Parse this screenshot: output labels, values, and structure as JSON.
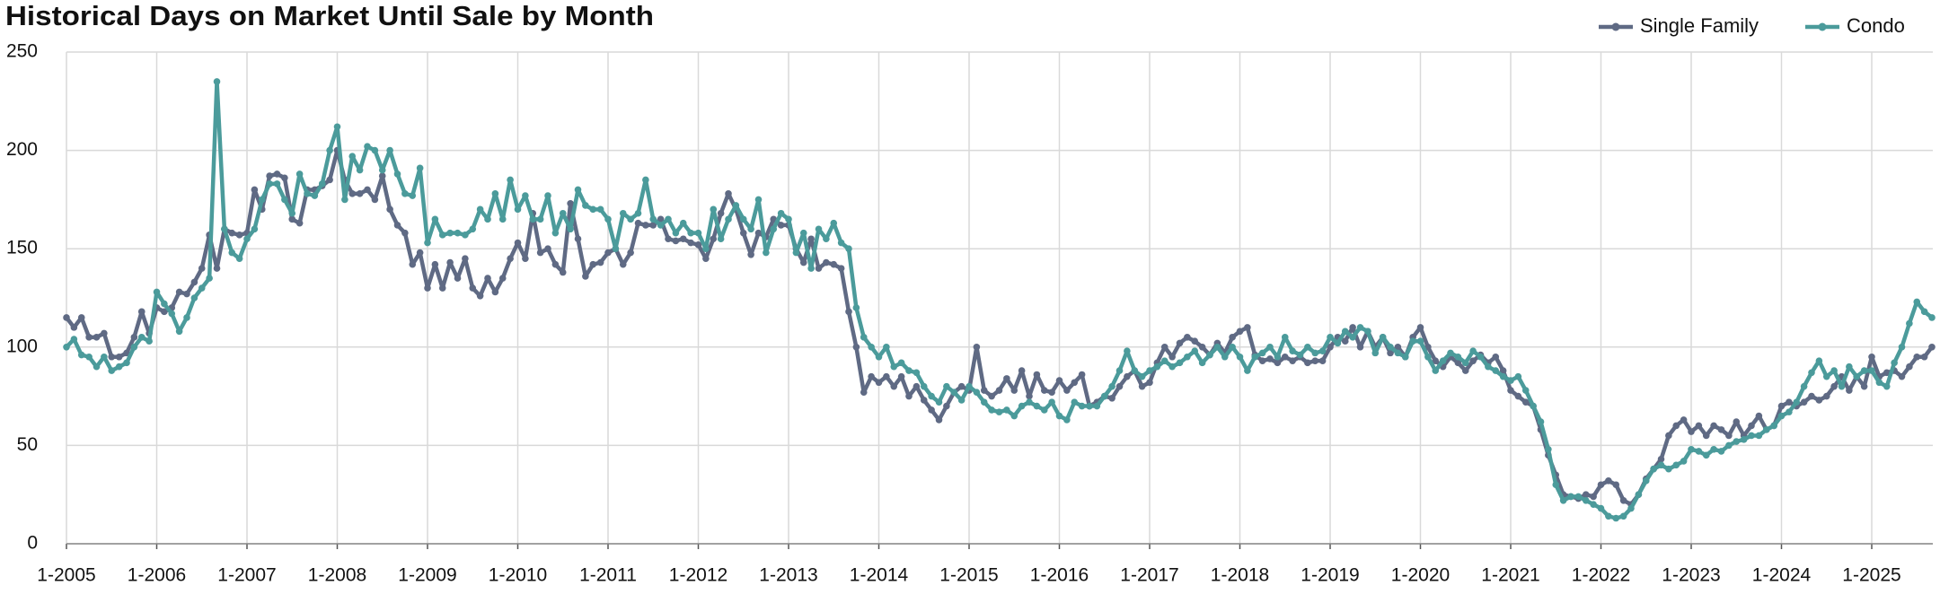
{
  "chart_data": {
    "type": "line",
    "title": "Historical Days on Market Until Sale by Month",
    "legend": "top-right",
    "grid": true,
    "ylim": [
      0,
      250
    ],
    "yticks": [
      0,
      50,
      100,
      150,
      200,
      250
    ],
    "categories": [
      "1-2005",
      null,
      null,
      null,
      null,
      null,
      null,
      null,
      null,
      null,
      null,
      null,
      "1-2006",
      null,
      null,
      null,
      null,
      null,
      null,
      null,
      null,
      null,
      null,
      null,
      "1-2007",
      null,
      null,
      null,
      null,
      null,
      null,
      null,
      null,
      null,
      null,
      null,
      "1-2008",
      null,
      null,
      null,
      null,
      null,
      null,
      null,
      null,
      null,
      null,
      null,
      "1-2009",
      null,
      null,
      null,
      null,
      null,
      null,
      null,
      null,
      null,
      null,
      null,
      "1-2010",
      null,
      null,
      null,
      null,
      null,
      null,
      null,
      null,
      null,
      null,
      null,
      "1-2011",
      null,
      null,
      null,
      null,
      null,
      null,
      null,
      null,
      null,
      null,
      null,
      "1-2012",
      null,
      null,
      null,
      null,
      null,
      null,
      null,
      null,
      null,
      null,
      null,
      "1-2013",
      null,
      null,
      null,
      null,
      null,
      null,
      null,
      null,
      null,
      null,
      null,
      "1-2014",
      null,
      null,
      null,
      null,
      null,
      null,
      null,
      null,
      null,
      null,
      null,
      "1-2015",
      null,
      null,
      null,
      null,
      null,
      null,
      null,
      null,
      null,
      null,
      null,
      "1-2016",
      null,
      null,
      null,
      null,
      null,
      null,
      null,
      null,
      null,
      null,
      null,
      "1-2017",
      null,
      null,
      null,
      null,
      null,
      null,
      null,
      null,
      null,
      null,
      null,
      "1-2018",
      null,
      null,
      null,
      null,
      null,
      null,
      null,
      null,
      null,
      null,
      null,
      "1-2019",
      null,
      null,
      null,
      null,
      null,
      null,
      null,
      null,
      null,
      null,
      null,
      "1-2020",
      null,
      null,
      null,
      null,
      null,
      null,
      null,
      null,
      null,
      null,
      null,
      "1-2021",
      null,
      null,
      null,
      null,
      null,
      null,
      null,
      null,
      null,
      null,
      null,
      "1-2022",
      null,
      null,
      null,
      null,
      null,
      null,
      null,
      null,
      null,
      null,
      null,
      "1-2023",
      null,
      null,
      null,
      null,
      null,
      null,
      null,
      null,
      null,
      null,
      null,
      "1-2024",
      null,
      null,
      null,
      null,
      null,
      null,
      null,
      null,
      null,
      null,
      null,
      "1-2025",
      null,
      null,
      null,
      null,
      null,
      null,
      null,
      null
    ],
    "series": [
      {
        "name": "Single Family",
        "color": "#5f6a84",
        "values": [
          115,
          110,
          115,
          105,
          105,
          107,
          95,
          95,
          97,
          105,
          118,
          107,
          120,
          118,
          120,
          128,
          127,
          133,
          140,
          157,
          140,
          160,
          158,
          157,
          158,
          180,
          170,
          187,
          188,
          186,
          165,
          163,
          180,
          180,
          182,
          185,
          200,
          185,
          178,
          178,
          180,
          175,
          187,
          170,
          162,
          158,
          142,
          148,
          130,
          142,
          130,
          143,
          135,
          145,
          130,
          126,
          135,
          128,
          135,
          145,
          153,
          145,
          168,
          148,
          150,
          142,
          138,
          173,
          155,
          136,
          142,
          143,
          148,
          150,
          142,
          148,
          163,
          162,
          162,
          165,
          155,
          154,
          155,
          153,
          152,
          145,
          155,
          168,
          178,
          170,
          158,
          147,
          158,
          156,
          165,
          162,
          162,
          150,
          143,
          155,
          140,
          143,
          142,
          140,
          118,
          100,
          77,
          85,
          82,
          85,
          80,
          85,
          75,
          80,
          73,
          68,
          63,
          70,
          77,
          80,
          78,
          100,
          78,
          75,
          78,
          84,
          78,
          88,
          75,
          86,
          78,
          77,
          83,
          78,
          82,
          86,
          70,
          72,
          75,
          74,
          80,
          85,
          88,
          80,
          82,
          92,
          100,
          95,
          102,
          105,
          103,
          100,
          96,
          102,
          97,
          105,
          108,
          110,
          96,
          93,
          94,
          92,
          95,
          93,
          95,
          92,
          93,
          93,
          100,
          105,
          103,
          110,
          100,
          108,
          100,
          105,
          97,
          100,
          95,
          105,
          110,
          100,
          93,
          90,
          95,
          92,
          88,
          93,
          96,
          92,
          95,
          88,
          78,
          75,
          72,
          70,
          58,
          45,
          35,
          25,
          24,
          23,
          25,
          24,
          30,
          32,
          30,
          22,
          20,
          25,
          33,
          38,
          43,
          55,
          60,
          63,
          57,
          60,
          55,
          60,
          58,
          55,
          62,
          55,
          60,
          65,
          58,
          60,
          70,
          72,
          70,
          72,
          75,
          73,
          75,
          80,
          85,
          78,
          85,
          80,
          95,
          85,
          87,
          88,
          85,
          90,
          95,
          95,
          100
        ]
      },
      {
        "name": "Condo",
        "color": "#4b9b9b",
        "values": [
          100,
          104,
          96,
          95,
          90,
          95,
          88,
          90,
          92,
          100,
          105,
          103,
          128,
          122,
          117,
          108,
          115,
          125,
          130,
          135,
          235,
          160,
          148,
          145,
          155,
          160,
          175,
          183,
          183,
          175,
          168,
          188,
          178,
          177,
          183,
          200,
          212,
          175,
          197,
          190,
          202,
          200,
          190,
          200,
          188,
          178,
          177,
          191,
          153,
          165,
          157,
          158,
          158,
          157,
          160,
          170,
          165,
          178,
          165,
          185,
          170,
          177,
          165,
          165,
          177,
          158,
          168,
          160,
          180,
          172,
          170,
          170,
          165,
          150,
          168,
          165,
          168,
          185,
          165,
          162,
          165,
          158,
          163,
          158,
          158,
          150,
          170,
          155,
          165,
          172,
          165,
          160,
          175,
          148,
          160,
          168,
          165,
          148,
          158,
          140,
          160,
          155,
          163,
          153,
          150,
          120,
          105,
          100,
          95,
          100,
          90,
          92,
          88,
          87,
          80,
          75,
          72,
          80,
          77,
          73,
          80,
          77,
          72,
          68,
          67,
          68,
          65,
          70,
          72,
          70,
          68,
          72,
          65,
          63,
          72,
          70,
          70,
          70,
          75,
          80,
          88,
          98,
          88,
          85,
          88,
          90,
          93,
          90,
          92,
          95,
          98,
          92,
          96,
          100,
          95,
          100,
          95,
          88,
          95,
          97,
          100,
          95,
          105,
          98,
          96,
          100,
          97,
          98,
          105,
          102,
          108,
          105,
          110,
          108,
          97,
          105,
          100,
          97,
          95,
          103,
          103,
          95,
          88,
          93,
          97,
          95,
          92,
          98,
          95,
          90,
          88,
          85,
          83,
          85,
          78,
          70,
          62,
          48,
          30,
          22,
          24,
          24,
          22,
          20,
          18,
          14,
          13,
          14,
          18,
          25,
          32,
          38,
          40,
          38,
          40,
          42,
          48,
          47,
          45,
          48,
          47,
          50,
          52,
          53,
          55,
          55,
          58,
          60,
          65,
          67,
          72,
          80,
          87,
          93,
          85,
          88,
          80,
          90,
          85,
          88,
          88,
          82,
          80,
          92,
          100,
          112,
          123,
          118,
          115
        ]
      }
    ]
  }
}
